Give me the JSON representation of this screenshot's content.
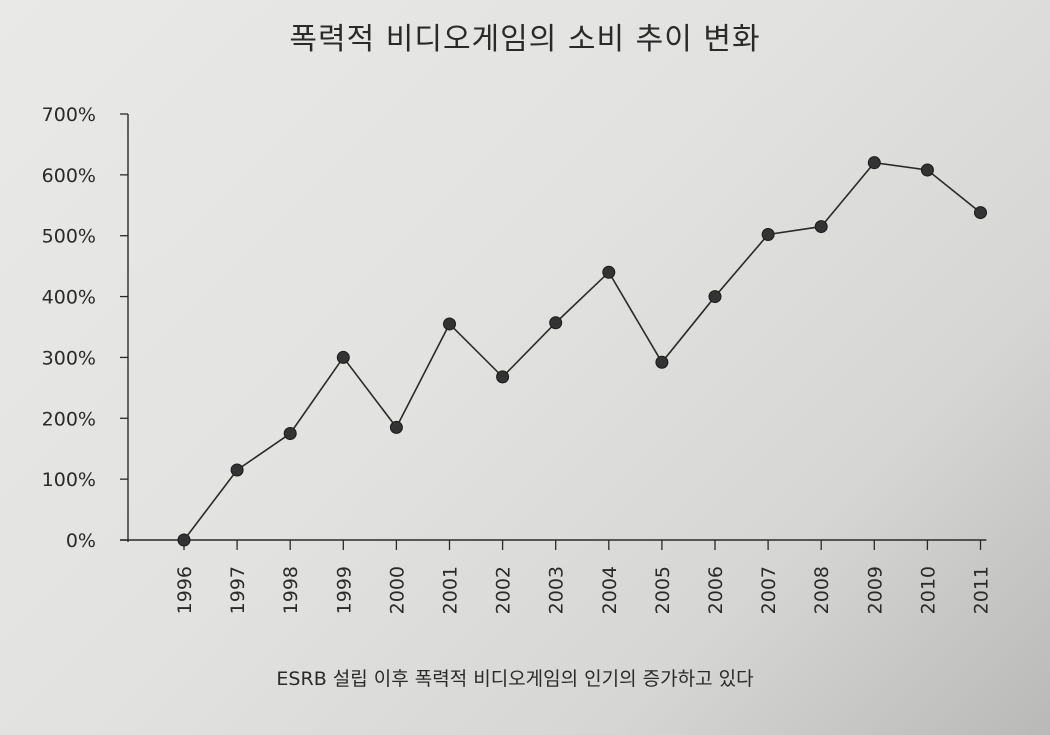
{
  "chart_data": {
    "type": "line",
    "title": "폭력적 비디오게임의 소비 추이 변화",
    "caption": "ESRB 설립 이후 폭력적 비디오게임의 인기의 증가하고 있다",
    "xlabel": "",
    "ylabel": "",
    "ylim": [
      0,
      700
    ],
    "y_ticks": [
      "0%",
      "100%",
      "200%",
      "300%",
      "400%",
      "500%",
      "600%",
      "700%"
    ],
    "categories": [
      "1996",
      "1997",
      "1998",
      "1999",
      "2000",
      "2001",
      "2002",
      "2003",
      "2004",
      "2005",
      "2006",
      "2007",
      "2008",
      "2009",
      "2010",
      "2011"
    ],
    "values": [
      0,
      115,
      175,
      300,
      185,
      355,
      268,
      357,
      440,
      292,
      400,
      502,
      515,
      620,
      608,
      538
    ],
    "grid": false,
    "legend": "none",
    "line_color": "#2a2a2a",
    "marker_color": "#333333"
  }
}
